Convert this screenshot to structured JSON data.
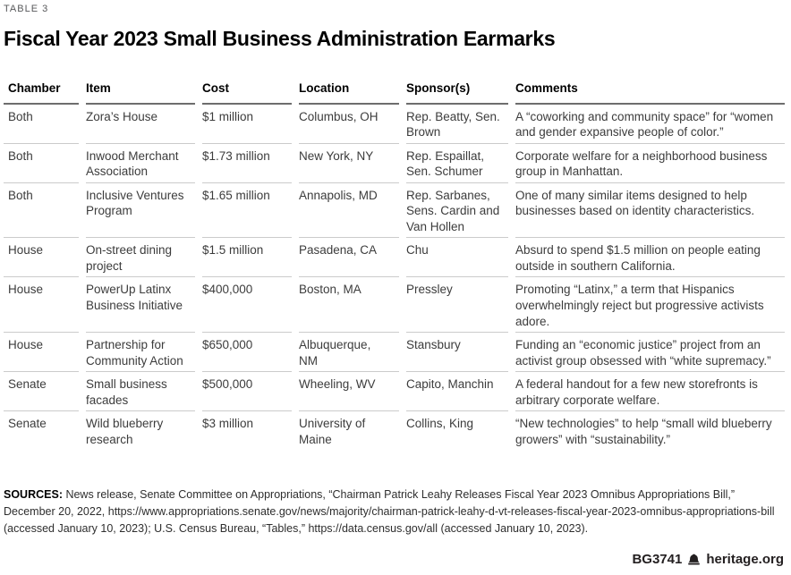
{
  "label": "TABLE 3",
  "chart_data": {
    "type": "table",
    "title": "Fiscal Year 2023 Small Business Administration Earmarks",
    "columns": [
      "Chamber",
      "Item",
      "Cost",
      "Location",
      "Sponsor(s)",
      "Comments"
    ],
    "rows": [
      [
        "Both",
        "Zora’s House",
        "$1 million",
        "Columbus, OH",
        "Rep. Beatty, Sen. Brown",
        "A “coworking and community space” for “women and gender expansive people of color.”"
      ],
      [
        "Both",
        "Inwood Merchant Association",
        "$1.73 million",
        "New York, NY",
        "Rep. Espaillat, Sen. Schumer",
        "Corporate welfare for a neighborhood business group in Manhattan."
      ],
      [
        "Both",
        "Inclusive Ventures Program",
        "$1.65 million",
        "Annapolis, MD",
        "Rep. Sarbanes, Sens. Cardin and Van Hollen",
        "One of many similar items designed to help businesses based on identity characteristics."
      ],
      [
        "House",
        "On-street dining project",
        "$1.5 million",
        "Pasadena, CA",
        "Chu",
        "Absurd to spend $1.5 million on people eating outside in southern California."
      ],
      [
        "House",
        "PowerUp Latinx Business Initiative",
        "$400,000",
        "Boston, MA",
        "Pressley",
        "Promoting “Latinx,” a term that Hispanics overwhelmingly reject but progressive activists adore."
      ],
      [
        "House",
        "Partnership for Community Action",
        "$650,000",
        "Albuquerque, NM",
        "Stansbury",
        "Funding an “economic justice” project from an activist group obsessed with “white supremacy.”"
      ],
      [
        "Senate",
        "Small business facades",
        "$500,000",
        "Wheeling, WV",
        "Capito, Manchin",
        "A federal handout for a few new storefronts is arbitrary corporate welfare."
      ],
      [
        "Senate",
        "Wild blueberry research",
        "$3 million",
        "University of Maine",
        "Collins, King",
        "“New technologies” to help “small wild blueberry growers” with “sustainability.”"
      ]
    ]
  },
  "sources": {
    "label": "SOURCES:",
    "text": " News release, Senate Committee on Appropriations, “Chairman Patrick Leahy Releases Fiscal Year 2023 Omnibus Appropriations Bill,” December 20, 2022, https://www.appropriations.senate.gov/news/majority/chairman-patrick-leahy-d-vt-releases-fiscal-year-2023-omnibus-appropriations-bill (accessed January 10, 2023); U.S. Census Bureau, “Tables,” https://data.census.gov/all (accessed January 10, 2023)."
  },
  "footer": {
    "report_id": "BG3741",
    "site": "heritage.org",
    "logo": "heritage-liberty-bell-icon"
  },
  "colors": {
    "header_rule": "#6d6d6d",
    "row_rule": "#cbcbcb",
    "body_text": "#3c3c3c",
    "label_text": "#58595b"
  }
}
